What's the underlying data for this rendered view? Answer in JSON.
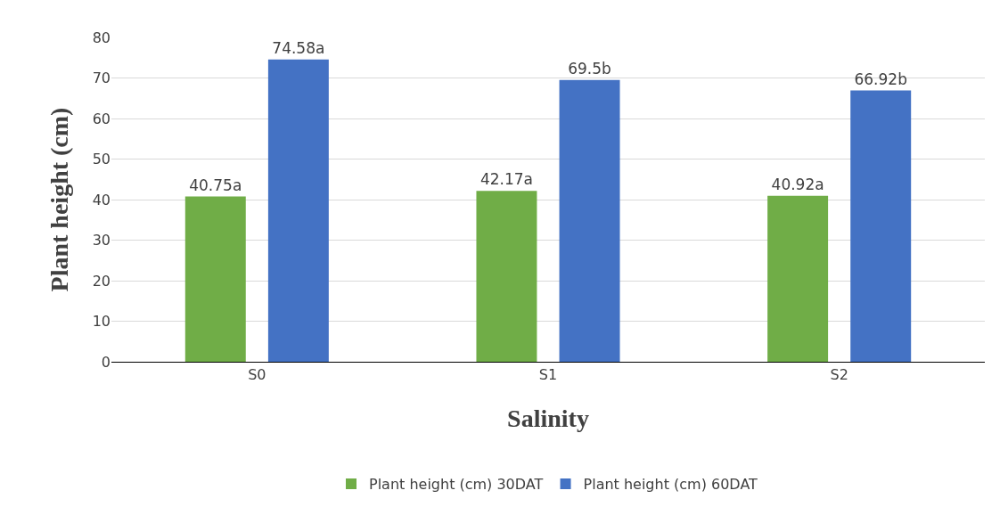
{
  "chart_data": {
    "type": "bar",
    "xlabel": "Salinity",
    "ylabel": "Plant height (cm)",
    "categories": [
      "S0",
      "S1",
      "S2"
    ],
    "series": [
      {
        "name": "Plant height (cm) 30DAT",
        "color": "#70ad47",
        "values": [
          40.75,
          42.17,
          40.92
        ],
        "value_labels": [
          "40.75a",
          "42.17a",
          "40.92a"
        ]
      },
      {
        "name": "Plant height (cm) 60DAT",
        "color": "#4472c4",
        "values": [
          74.58,
          69.5,
          66.92
        ],
        "value_labels": [
          "74.58a",
          "69.5b",
          "66.92b"
        ]
      }
    ],
    "ylim": [
      0,
      80
    ],
    "yticks": [
      0,
      10,
      20,
      30,
      40,
      50,
      60,
      70,
      80
    ],
    "grid": "y",
    "legend": "bottom"
  }
}
